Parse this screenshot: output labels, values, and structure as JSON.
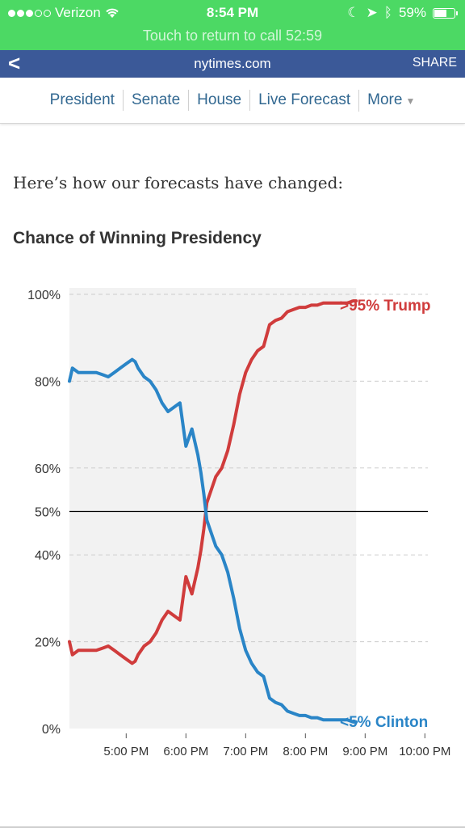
{
  "status": {
    "carrier": "Verizon",
    "time": "8:54 PM",
    "battery": "59%",
    "call": "Touch to return to call  52:59"
  },
  "nav": {
    "back": "<",
    "domain": "nytimes.com",
    "share": "SHARE"
  },
  "sections": [
    "President",
    "Senate",
    "House",
    "Live Forecast",
    "More"
  ],
  "intro": "Here’s how our forecasts have changed:",
  "chart_title": "Chance of Winning Presidency",
  "colors": {
    "trump": "#d03c3c",
    "clinton": "#2a85c7",
    "status_bar": "#4cd964",
    "nav_bar": "#3b5998",
    "link": "#326891",
    "forecast_bg": "#f2f2f2"
  },
  "chart_data": {
    "type": "line",
    "title": "Chance of Winning Presidency",
    "xlabel": "",
    "ylabel": "",
    "x_ticks": [
      "5:00 PM",
      "6:00 PM",
      "7:00 PM",
      "8:00 PM",
      "9:00 PM",
      "10:00 PM"
    ],
    "y_ticks": [
      "0%",
      "20%",
      "40%",
      "50%",
      "60%",
      "80%",
      "100%"
    ],
    "x_range_hours": [
      16.05,
      22.05
    ],
    "shaded_until_hour": 20.85,
    "ylim": [
      0,
      100
    ],
    "reference_line": 50,
    "grid": true,
    "end_labels": [
      ">95% Trump",
      "<5% Clinton"
    ],
    "series": [
      {
        "name": "Trump",
        "x": [
          16.05,
          16.1,
          16.2,
          16.3,
          16.4,
          16.5,
          16.6,
          16.7,
          16.8,
          16.9,
          17.0,
          17.1,
          17.15,
          17.2,
          17.3,
          17.4,
          17.5,
          17.6,
          17.7,
          17.8,
          17.9,
          18.0,
          18.1,
          18.2,
          18.25,
          18.3,
          18.35,
          18.4,
          18.5,
          18.6,
          18.7,
          18.8,
          18.9,
          19.0,
          19.1,
          19.2,
          19.3,
          19.4,
          19.5,
          19.6,
          19.7,
          19.8,
          19.9,
          20.0,
          20.1,
          20.2,
          20.3,
          20.4,
          20.5,
          20.6,
          20.7,
          20.8,
          20.85
        ],
        "y": [
          20,
          17,
          18,
          18,
          18,
          18,
          18.5,
          19,
          18,
          17,
          16,
          15,
          15.5,
          17,
          19,
          20,
          22,
          25,
          27,
          26,
          25,
          35,
          31,
          37,
          41,
          46,
          52,
          54,
          58,
          60,
          64,
          70,
          77,
          82,
          85,
          87,
          88,
          93,
          94,
          94.5,
          96,
          96.5,
          97,
          97,
          97.5,
          97.5,
          98,
          98,
          98,
          98,
          98,
          98.5,
          98.5
        ]
      },
      {
        "name": "Clinton",
        "x": [
          16.05,
          16.1,
          16.2,
          16.3,
          16.4,
          16.5,
          16.6,
          16.7,
          16.8,
          16.9,
          17.0,
          17.1,
          17.15,
          17.2,
          17.3,
          17.4,
          17.5,
          17.6,
          17.7,
          17.8,
          17.9,
          18.0,
          18.1,
          18.2,
          18.25,
          18.3,
          18.35,
          18.4,
          18.5,
          18.6,
          18.7,
          18.8,
          18.9,
          19.0,
          19.1,
          19.2,
          19.3,
          19.4,
          19.5,
          19.6,
          19.7,
          19.8,
          19.9,
          20.0,
          20.1,
          20.2,
          20.3,
          20.4,
          20.5,
          20.6,
          20.7,
          20.8,
          20.85
        ],
        "y": [
          80,
          83,
          82,
          82,
          82,
          82,
          81.5,
          81,
          82,
          83,
          84,
          85,
          84.5,
          83,
          81,
          80,
          78,
          75,
          73,
          74,
          75,
          65,
          69,
          63,
          59,
          54,
          48,
          46,
          42,
          40,
          36,
          30,
          23,
          18,
          15,
          13,
          12,
          7,
          6,
          5.5,
          4,
          3.5,
          3,
          3,
          2.5,
          2.5,
          2,
          2,
          2,
          2,
          2,
          1.5,
          1.5
        ]
      }
    ]
  }
}
